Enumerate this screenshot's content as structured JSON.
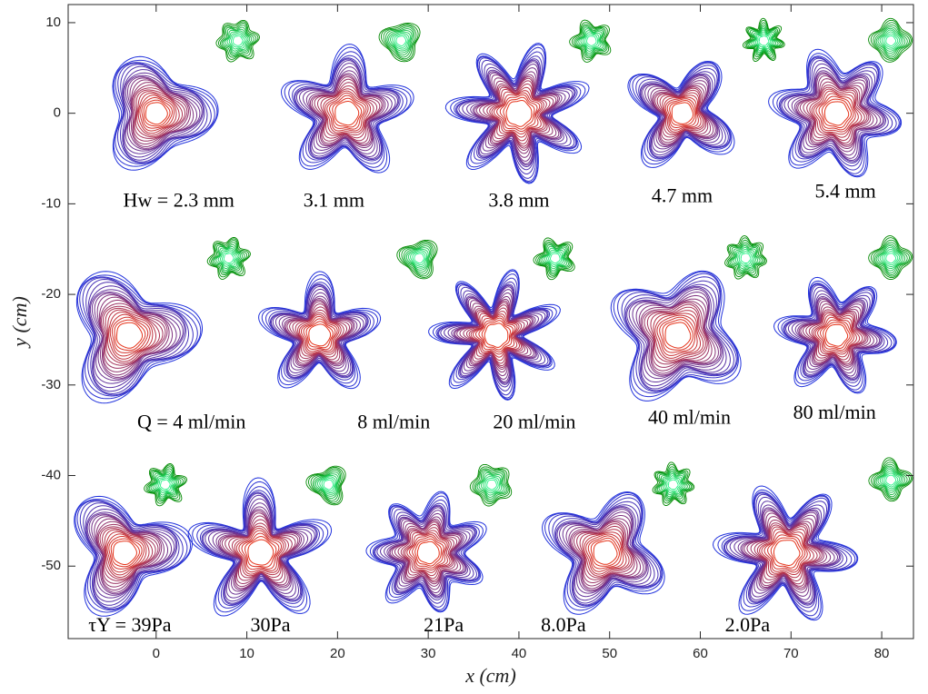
{
  "chart_data": {
    "type": "contour",
    "xlabel": "x (cm)",
    "ylabel": "y (cm)",
    "xlim": [
      -9.7,
      83.5
    ],
    "ylim": [
      -58,
      12
    ],
    "xticks": [
      0,
      10,
      20,
      30,
      40,
      50,
      60,
      70,
      80
    ],
    "yticks": [
      10,
      0,
      -10,
      -20,
      -30,
      -40,
      -50
    ],
    "series": [
      {
        "colors": [
          "#ee3311",
          "#2233dd"
        ],
        "x": [
          0,
          21,
          40,
          58,
          75,
          -3,
          18,
          37.5,
          57.5,
          75,
          -3.5,
          11.5,
          30,
          49.5,
          69.5
        ],
        "values": [
          0,
          0,
          0,
          0,
          0,
          -24.5,
          -24.5,
          -24.5,
          -24.5,
          -24.5,
          -48.5,
          -48.5,
          -48.5,
          -48.5,
          -48.5
        ]
      },
      {
        "colors": [
          "#33ff99",
          "#008800"
        ],
        "x": [
          9,
          27,
          48,
          67,
          81,
          8,
          29,
          44,
          65,
          81,
          1,
          19,
          37,
          57,
          81
        ],
        "values": [
          8,
          8,
          8,
          8,
          8,
          -16,
          -16,
          -16,
          -16,
          -16,
          -41,
          -41,
          -41,
          -41,
          -40.5
        ]
      }
    ],
    "annotations": [
      {
        "text": "Hw = 2.3 mm",
        "x": 2.5,
        "y": -9.8
      },
      {
        "text": "3.1 mm",
        "x": 19.6,
        "y": -9.8
      },
      {
        "text": "3.8 mm",
        "x": 40,
        "y": -9.8
      },
      {
        "text": "4.7 mm",
        "x": 58,
        "y": -9.3
      },
      {
        "text": "5.4 mm",
        "x": 76,
        "y": -8.8
      },
      {
        "text": "Q = 4 ml/min",
        "x": 3.9,
        "y": -34.3
      },
      {
        "text": "8 ml/min",
        "x": 26.2,
        "y": -34.3
      },
      {
        "text": "20 ml/min",
        "x": 41.7,
        "y": -34.3
      },
      {
        "text": "40 ml/min",
        "x": 58.8,
        "y": -33.8
      },
      {
        "text": "80 ml/min",
        "x": 74.8,
        "y": -33.2
      },
      {
        "text": "τY = 39Pa",
        "x": -2.9,
        "y": -56.7
      },
      {
        "text": "30Pa",
        "x": 12.6,
        "y": -56.7
      },
      {
        "text": "21Pa",
        "x": 31.7,
        "y": -56.7
      },
      {
        "text": "8.0Pa",
        "x": 44.9,
        "y": -56.7
      },
      {
        "text": "2.0Pa",
        "x": 65.2,
        "y": -56.7
      }
    ]
  }
}
